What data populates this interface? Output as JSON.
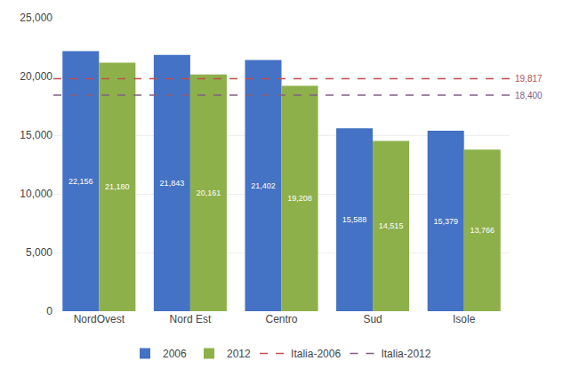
{
  "chart_data": {
    "type": "bar",
    "categories": [
      "NordOvest",
      "Nord Est",
      "Centro",
      "Sud",
      "Isole"
    ],
    "series": [
      {
        "name": "2006",
        "color": "#4472C4",
        "values": [
          22156,
          21843,
          21402,
          15588,
          15379
        ],
        "value_labels": [
          "22,156",
          "21,843",
          "21,402",
          "15,588",
          "15,379"
        ]
      },
      {
        "name": "2012",
        "color": "#8DB04B",
        "values": [
          21180,
          20161,
          19208,
          14515,
          13766
        ],
        "value_labels": [
          "21,180",
          "20,161",
          "19,208",
          "14,515",
          "13,766"
        ]
      }
    ],
    "reference_lines": [
      {
        "name": "Italia-2006",
        "color": "#C0504D",
        "line_style": "dashed",
        "value": 19817,
        "label": "19,817"
      },
      {
        "name": "Italia-2012",
        "color": "#7F6084",
        "line_style": "dashed",
        "value": 18400,
        "label": "18,400"
      }
    ],
    "ylim": [
      0,
      25000
    ],
    "yticks": [
      0,
      {
        "value": 5000,
        "label": "5,000"
      },
      {
        "value": 10000,
        "label": "10,000"
      },
      {
        "value": 15000,
        "label": "15,000"
      },
      {
        "value": 20000,
        "label": "20,000"
      },
      {
        "value": 25000,
        "label": "25,000"
      }
    ],
    "grid": true,
    "data_labels": true,
    "legend": "bottom"
  }
}
